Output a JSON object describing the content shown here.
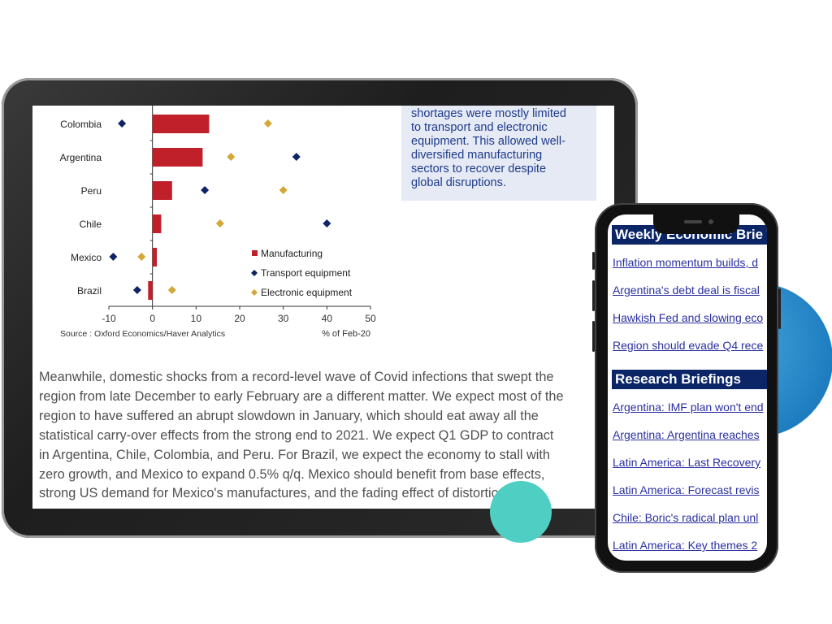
{
  "tablet": {
    "callout_lines": [
      "shortages were mostly limited",
      "to transport and electronic",
      "equipment. This allowed well-",
      "diversified manufacturing",
      "sectors to recover despite",
      "global disruptions."
    ],
    "paragraph_lines": [
      "Meanwhile, domestic shocks from a record-level wave of Covid infections that swept the",
      "region from late December to early February are a different matter. We expect most of the",
      "region to have suffered an abrupt slowdown in January, which should eat away all the",
      "statistical carry-over effects from the strong end to 2021. We expect Q1 GDP to contract",
      "in Argentina, Chile, Colombia, and Peru. For Brazil, we expect the economy to stall with",
      "zero growth, and Mexico to expand 0.5% q/q. Mexico should benefit from base effects,",
      "strong US demand for Mexico's manufactures, and the fading effect of distortions"
    ]
  },
  "chart_data": {
    "type": "bar",
    "orientation": "horizontal",
    "categories": [
      "Colombia",
      "Argentina",
      "Peru",
      "Chile",
      "Mexico",
      "Brazil"
    ],
    "series": [
      {
        "name": "Manufacturing",
        "mark": "bar",
        "color": "#c0202a",
        "values": [
          13,
          11.5,
          4.5,
          2,
          1,
          -1
        ]
      },
      {
        "name": "Transport equipment",
        "mark": "diamond",
        "color": "#0e2466",
        "values": [
          -7,
          33,
          12,
          40,
          -9,
          -3.5
        ]
      },
      {
        "name": "Electronic equipment",
        "mark": "diamond",
        "color": "#d4a836",
        "values": [
          26.5,
          18,
          30,
          15.5,
          -2.5,
          4.5
        ]
      }
    ],
    "xlim": [
      -10,
      50
    ],
    "xticks": [
      "-10",
      "0",
      "10",
      "20",
      "30",
      "40",
      "50"
    ],
    "xlabel": "% of Feb-20",
    "source": "Source : Oxford Economics/Haver Analytics",
    "legend_position": "bottom-right",
    "grid": false
  },
  "phone": {
    "sections": [
      {
        "title": "Weekly Economic Brie",
        "links": [
          "Inflation momentum builds, d",
          "Argentina's debt deal is fiscal",
          "Hawkish Fed and slowing eco",
          "Region should evade Q4 rece"
        ]
      },
      {
        "title": "Research Briefings",
        "links": [
          "Argentina: IMF plan won't end",
          "Argentina: Argentina reaches",
          "Latin America: Last Recovery",
          "Latin America: Forecast revis",
          "Chile: Boric's radical plan unl",
          "Latin America: Key themes 2"
        ]
      }
    ]
  }
}
